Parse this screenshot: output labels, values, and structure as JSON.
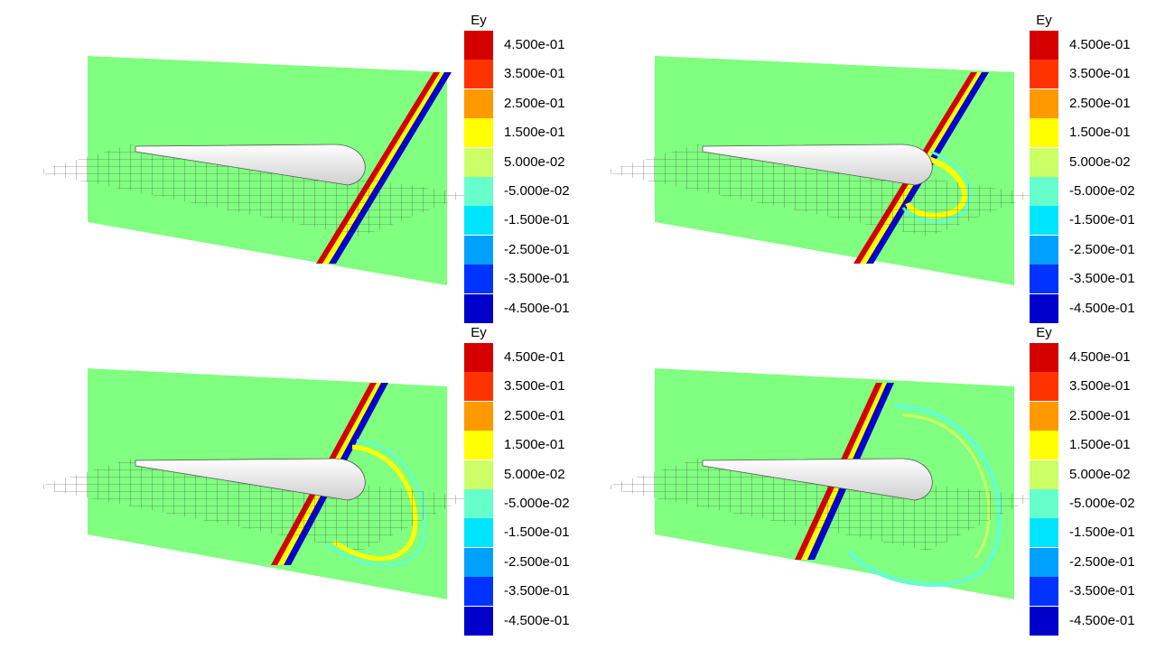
{
  "panels": [
    {
      "stage": 1
    },
    {
      "stage": 2
    },
    {
      "stage": 3
    },
    {
      "stage": 4
    }
  ],
  "colorbar": {
    "title": "Ey",
    "levels": [
      {
        "label": "4.500e-01",
        "color": "#d40000"
      },
      {
        "label": "3.500e-01",
        "color": "#ff3300"
      },
      {
        "label": "2.500e-01",
        "color": "#ff9900"
      },
      {
        "label": "1.500e-01",
        "color": "#ffff00"
      },
      {
        "label": "5.000e-02",
        "color": "#ccff66"
      },
      {
        "label": "-5.000e-02",
        "color": "#66ffcc"
      },
      {
        "label": "-1.500e-01",
        "color": "#00e5ff"
      },
      {
        "label": "-2.500e-01",
        "color": "#00a0ff"
      },
      {
        "label": "-3.500e-01",
        "color": "#0033ff"
      },
      {
        "label": "-4.500e-01",
        "color": "#0000cc"
      }
    ]
  },
  "colors": {
    "plane": "#80ff80",
    "body": "#f5f5f5",
    "mesh": "#333333"
  }
}
